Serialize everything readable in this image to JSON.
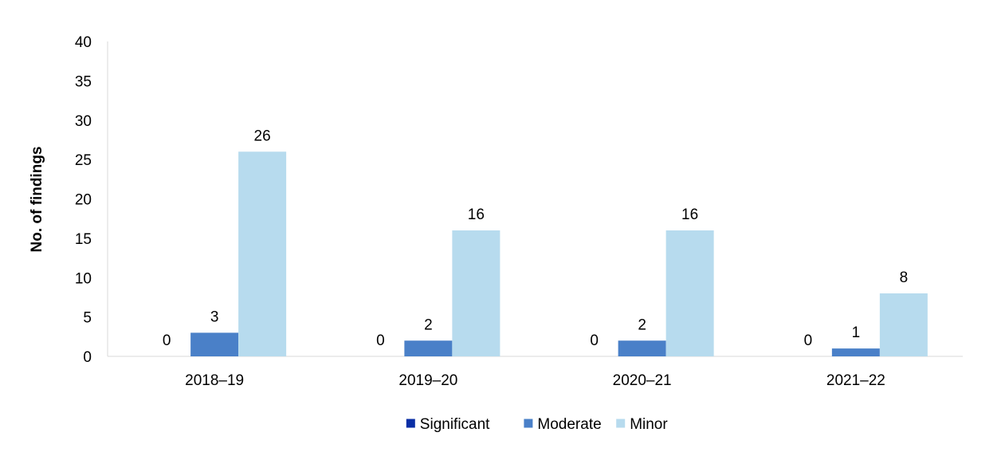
{
  "chart_data": {
    "type": "bar",
    "categories": [
      "2018–19",
      "2019–20",
      "2020–21",
      "2021–22"
    ],
    "series": [
      {
        "name": "Significant",
        "values": [
          0,
          0,
          0,
          0
        ],
        "color": "#0a2ea5"
      },
      {
        "name": "Moderate",
        "values": [
          3,
          2,
          2,
          1
        ],
        "color": "#4a80c8"
      },
      {
        "name": "Minor",
        "values": [
          26,
          16,
          16,
          8
        ],
        "color": "#b7dbee"
      }
    ],
    "title": "",
    "xlabel": "",
    "ylabel": "No. of findings",
    "ylim": [
      0,
      40
    ],
    "yticks": [
      0,
      5,
      10,
      15,
      20,
      25,
      30,
      35,
      40
    ],
    "grid": false,
    "legend_position": "bottom-center",
    "data_labels": true
  }
}
